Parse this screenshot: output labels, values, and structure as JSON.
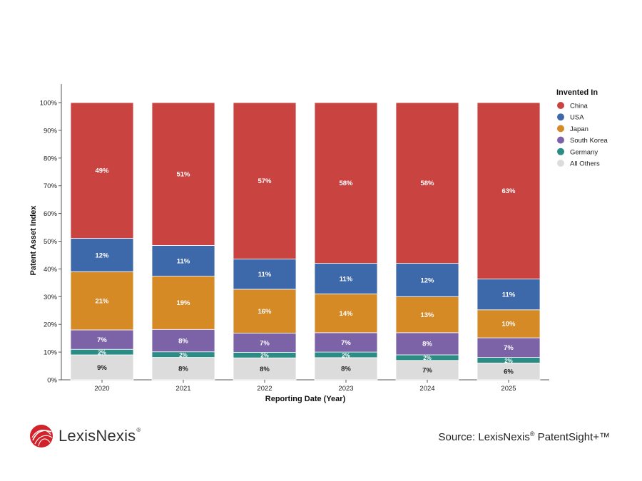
{
  "chart_data": {
    "type": "bar",
    "stacked": true,
    "categories": [
      "2020",
      "2021",
      "2022",
      "2023",
      "2024",
      "2025"
    ],
    "series": [
      {
        "name": "All Others",
        "color": "#dcdcdc",
        "values": [
          9,
          8,
          8,
          8,
          7,
          6
        ],
        "labels": [
          "9%",
          "8%",
          "8%",
          "8%",
          "7%",
          "6%"
        ]
      },
      {
        "name": "Germany",
        "color": "#2a8c84",
        "values": [
          2,
          2,
          2,
          2,
          2,
          2
        ],
        "labels": [
          "2%",
          "2%",
          "2%",
          "2%",
          "2%",
          "2%"
        ]
      },
      {
        "name": "South Korea",
        "color": "#7c62a6",
        "values": [
          7,
          8,
          7,
          7,
          8,
          7
        ],
        "labels": [
          "7%",
          "8%",
          "7%",
          "7%",
          "8%",
          "7%"
        ]
      },
      {
        "name": "Japan",
        "color": "#d68a26",
        "values": [
          21,
          19,
          16,
          14,
          13,
          10
        ],
        "labels": [
          "21%",
          "19%",
          "16%",
          "14%",
          "13%",
          "10%"
        ]
      },
      {
        "name": "USA",
        "color": "#3d68aa",
        "values": [
          12,
          11,
          11,
          11,
          12,
          11
        ],
        "labels": [
          "12%",
          "11%",
          "11%",
          "11%",
          "12%",
          "11%"
        ]
      },
      {
        "name": "China",
        "color": "#c94441",
        "values": [
          49,
          51,
          57,
          58,
          58,
          63
        ],
        "labels": [
          "49%",
          "51%",
          "57%",
          "58%",
          "58%",
          "63%"
        ]
      }
    ],
    "legend_order": [
      "China",
      "USA",
      "Japan",
      "South Korea",
      "Germany",
      "All Others"
    ],
    "legend_title": "Invented In",
    "legend_position": "right",
    "xlabel": "Reporting Date (Year)",
    "ylabel": "Patent Asset Index",
    "yticks": [
      "0%",
      "10%",
      "20%",
      "30%",
      "40%",
      "50%",
      "60%",
      "70%",
      "80%",
      "90%",
      "100%"
    ],
    "ylim": [
      0,
      100
    ],
    "grid": false
  },
  "branding": {
    "logo_name": "LexisNexis",
    "reg_mark": "®",
    "source_prefix": "Source: LexisNexis",
    "source_reg": "®",
    "source_product": " PatentSight+™"
  }
}
